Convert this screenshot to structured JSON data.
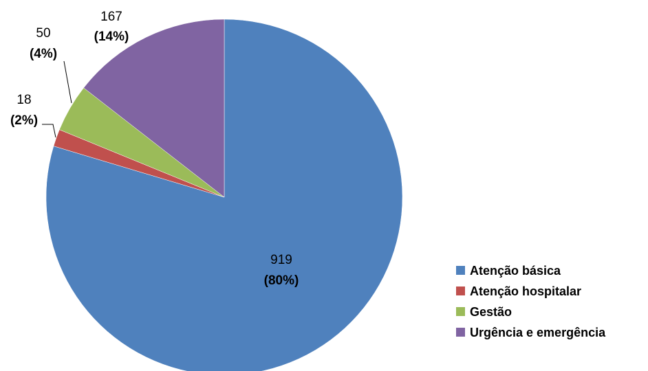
{
  "chart_data": {
    "type": "pie",
    "title": "",
    "start_angle_deg": 0,
    "direction": "clockwise",
    "slices": [
      {
        "label": "Atenção básica",
        "value": 919,
        "percent_label": "(80%)",
        "color": "#4F81BD"
      },
      {
        "label": "Atenção hospitalar",
        "value": 18,
        "percent_label": "(2%)",
        "color": "#C0504D"
      },
      {
        "label": "Gestão",
        "value": 50,
        "percent_label": "(4%)",
        "color": "#9BBB59"
      },
      {
        "label": "Urgência e emergência",
        "value": 167,
        "percent_label": "(14%)",
        "color": "#8064A2"
      }
    ],
    "legend_position": "right-bottom"
  }
}
